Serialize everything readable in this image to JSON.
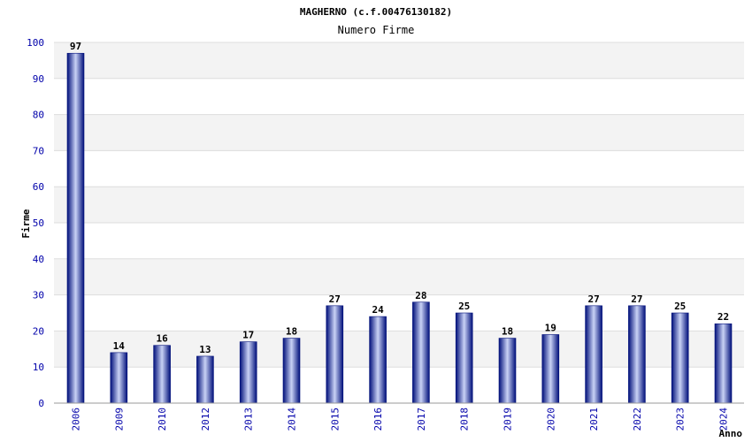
{
  "chart_data": {
    "type": "bar",
    "title": "MAGHERNO (c.f.00476130182)",
    "subtitle": "Numero Firme",
    "xlabel": "Anno",
    "ylabel": "Firme",
    "ylim": [
      0,
      100
    ],
    "yticks": [
      0,
      10,
      20,
      30,
      40,
      50,
      60,
      70,
      80,
      90,
      100
    ],
    "categories": [
      "2006",
      "2009",
      "2010",
      "2012",
      "2013",
      "2014",
      "2015",
      "2016",
      "2017",
      "2018",
      "2019",
      "2020",
      "2021",
      "2022",
      "2023",
      "2024"
    ],
    "values": [
      97,
      14,
      16,
      13,
      17,
      18,
      27,
      24,
      28,
      25,
      18,
      19,
      27,
      27,
      25,
      22
    ],
    "grid": true,
    "colors": {
      "bar_dark": "#000f7a",
      "bar_light": "#c9d2f5",
      "band": "#f3f3f3",
      "gridline": "#dddddd",
      "tick_text": "#0000aa"
    }
  }
}
